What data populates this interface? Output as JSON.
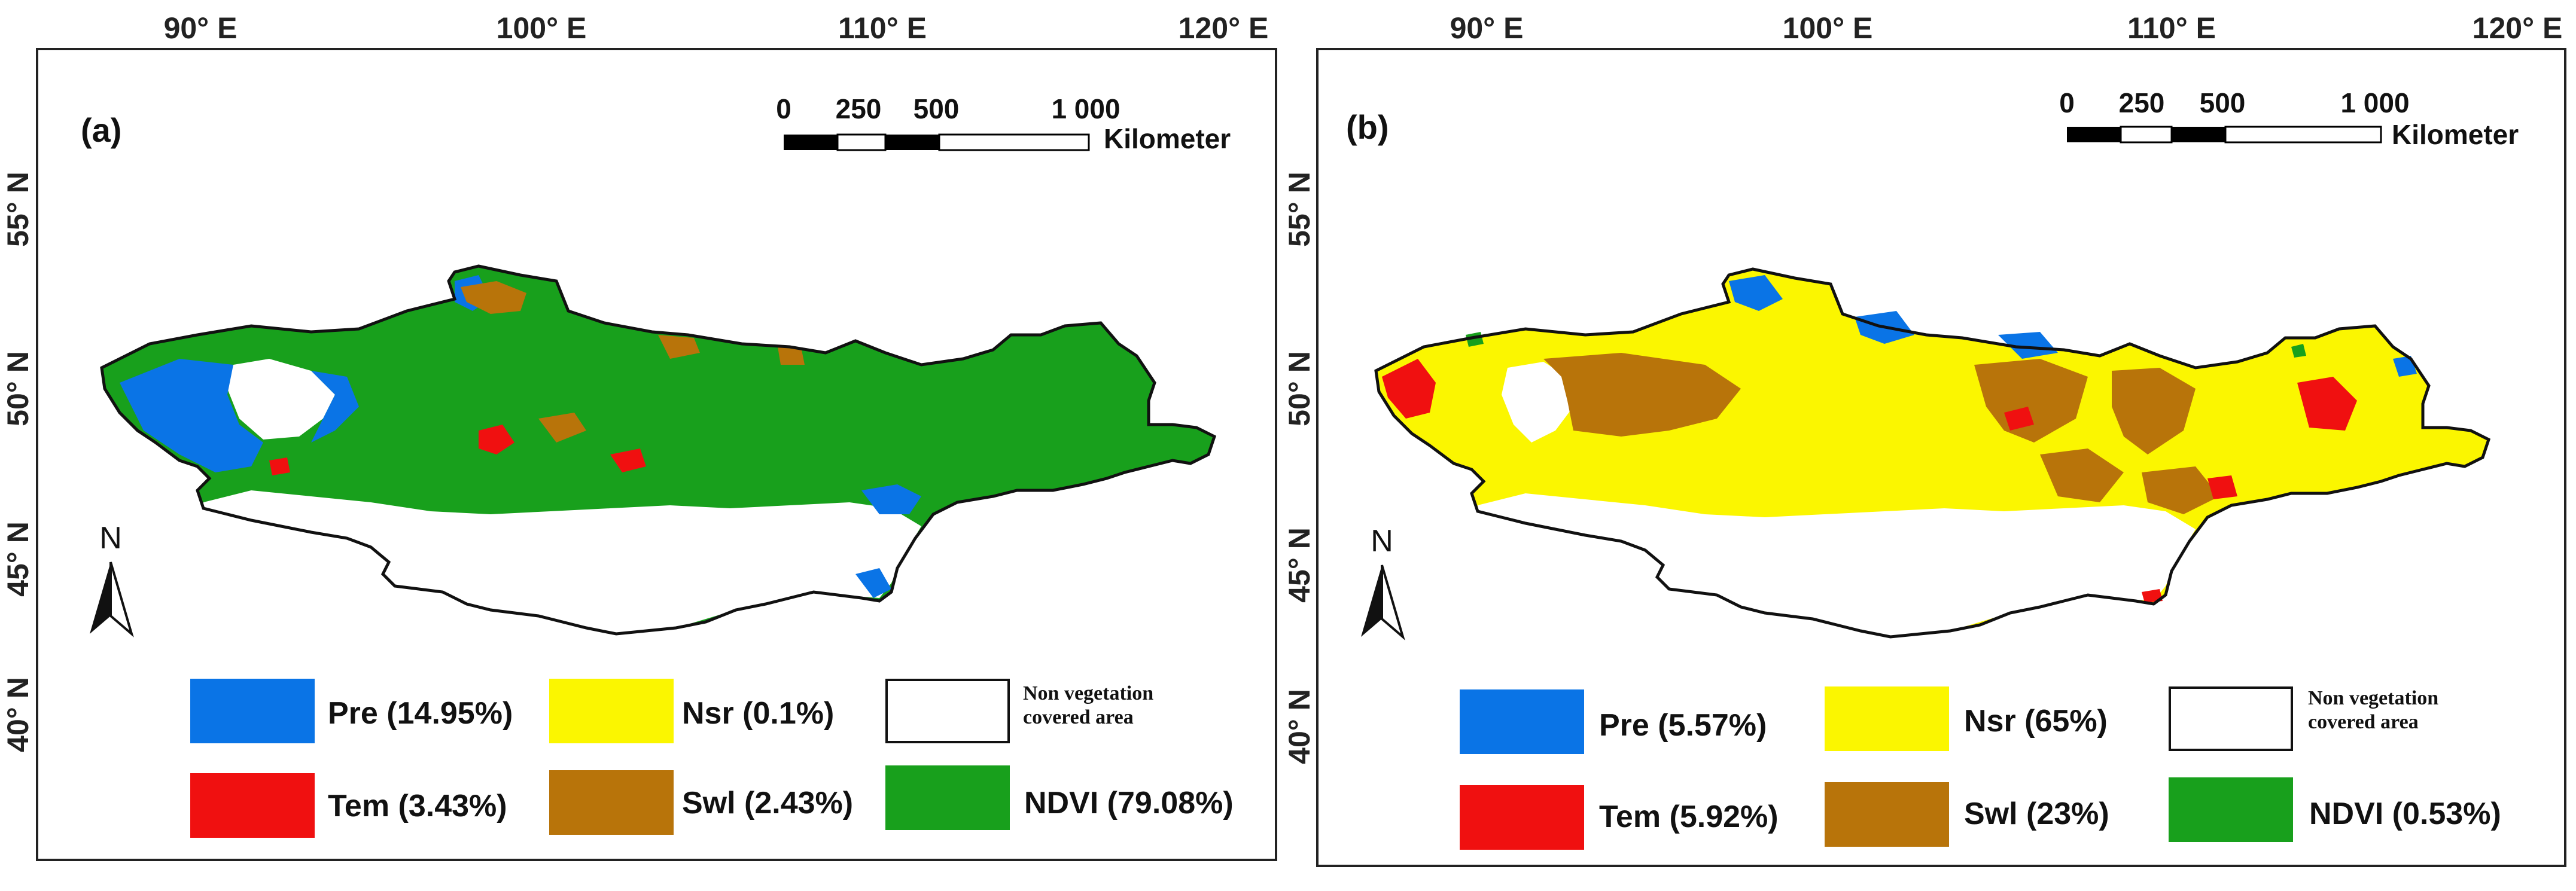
{
  "map_axes": {
    "longitude_labels": [
      "90° E",
      "100° E",
      "110° E",
      "120° E"
    ],
    "latitude_labels": [
      "55° N",
      "50° N",
      "45° N",
      "40° N"
    ]
  },
  "scale_bar": {
    "ticks": [
      "0",
      "250",
      "500",
      "1 000"
    ],
    "unit": "Kilometer"
  },
  "north_arrow": {
    "letter": "N"
  },
  "colors": {
    "pre": "#0a74e6",
    "tem": "#f01010",
    "nsr": "#fbf600",
    "swl": "#b8740a",
    "ndvi": "#18a01c",
    "non_vegetation": "#ffffff"
  },
  "panels": [
    {
      "label": "(a)",
      "legend": {
        "pre": "Pre (14.95%)",
        "nsr": "Nsr (0.1%)",
        "non_vegetation": "Non vegetation\ncovered area",
        "tem": "Tem (3.43%)",
        "swl": "Swl (2.43%)",
        "ndvi": "NDVI (79.08%)"
      },
      "dominant_class": "ndvi",
      "class_shares_percent": {
        "pre": 14.95,
        "nsr": 0.1,
        "tem": 3.43,
        "swl": 2.43,
        "ndvi": 79.08
      }
    },
    {
      "label": "(b)",
      "legend": {
        "pre": "Pre (5.57%)",
        "nsr": "Nsr (65%)",
        "non_vegetation": "Non vegetation\ncovered area",
        "tem": "Tem (5.92%)",
        "swl": "Swl (23%)",
        "ndvi": "NDVI (0.53%)"
      },
      "dominant_class": "nsr",
      "class_shares_percent": {
        "pre": 5.57,
        "nsr": 65,
        "tem": 5.92,
        "swl": 23,
        "ndvi": 0.53
      }
    }
  ]
}
